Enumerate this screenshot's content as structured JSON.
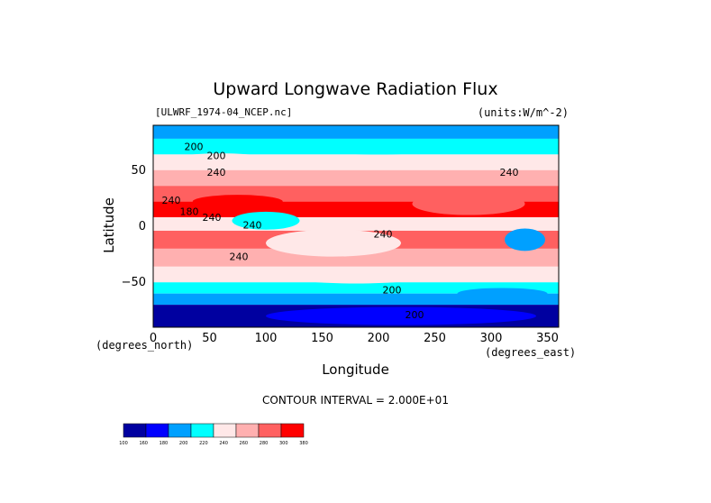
{
  "chart_data": {
    "type": "heatmap",
    "title": "Upward Longwave Radiation Flux",
    "file_label": "[ULWRF_1974-04_NCEP.nc]",
    "units_label": "(units:W/m^-2)",
    "xlabel": "Longitude",
    "ylabel": "Latitude",
    "x_unit": "(degrees_north)",
    "x_unit2": "(degrees_east)",
    "xlim": [
      0,
      360
    ],
    "ylim": [
      -90,
      90
    ],
    "x_ticks": [
      "0",
      "50",
      "100",
      "150",
      "200",
      "250",
      "300",
      "350"
    ],
    "y_ticks": [
      "50",
      "0",
      "−50"
    ],
    "contour_note": "CONTOUR INTERVAL = 2.000E+01",
    "contour_labels": [
      "200",
      "200",
      "240",
      "240",
      "180",
      "240",
      "240",
      "240",
      "240",
      "200",
      "200",
      "240"
    ],
    "colorbar_levels": [
      "100",
      "160",
      "180",
      "200",
      "220",
      "240",
      "260",
      "280",
      "300",
      "380"
    ],
    "colorbar_colors": [
      "#0000a0",
      "#0000ff",
      "#00a0ff",
      "#00ffff",
      "#ffe8e8",
      "#ffb0b0",
      "#ff6060",
      "#ff0000"
    ],
    "grid": false
  }
}
